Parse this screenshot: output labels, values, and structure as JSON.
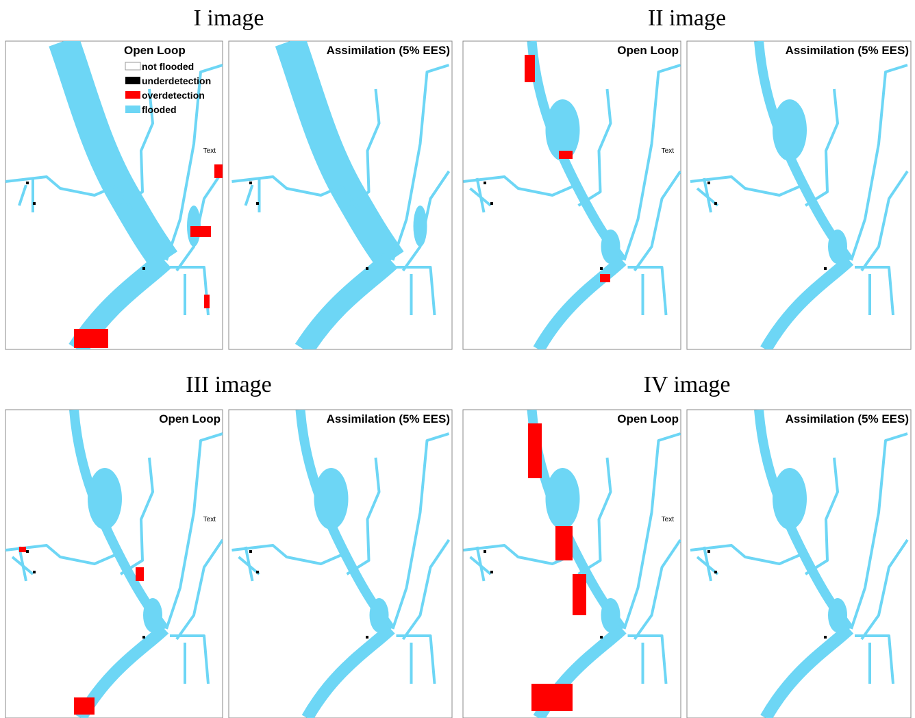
{
  "groups": [
    {
      "title": "I image",
      "panels": [
        {
          "label": "Open Loop",
          "annotation": "Text"
        },
        {
          "label": "Assimilation (5% EES)"
        }
      ]
    },
    {
      "title": "II image",
      "panels": [
        {
          "label": "Open Loop",
          "annotation": "Text"
        },
        {
          "label": "Assimilation (5% EES)"
        }
      ]
    },
    {
      "title": "III image",
      "panels": [
        {
          "label": "Open Loop",
          "annotation": "Text"
        },
        {
          "label": "Assimilation (5% EES)"
        }
      ]
    },
    {
      "title": "IV image",
      "panels": [
        {
          "label": "Open Loop",
          "annotation": "Text"
        },
        {
          "label": "Assimilation (5% EES)"
        }
      ]
    }
  ],
  "legend": {
    "title": "Open Loop",
    "items": [
      "not flooded",
      "underdetection",
      "overdetection",
      "flooded"
    ]
  }
}
